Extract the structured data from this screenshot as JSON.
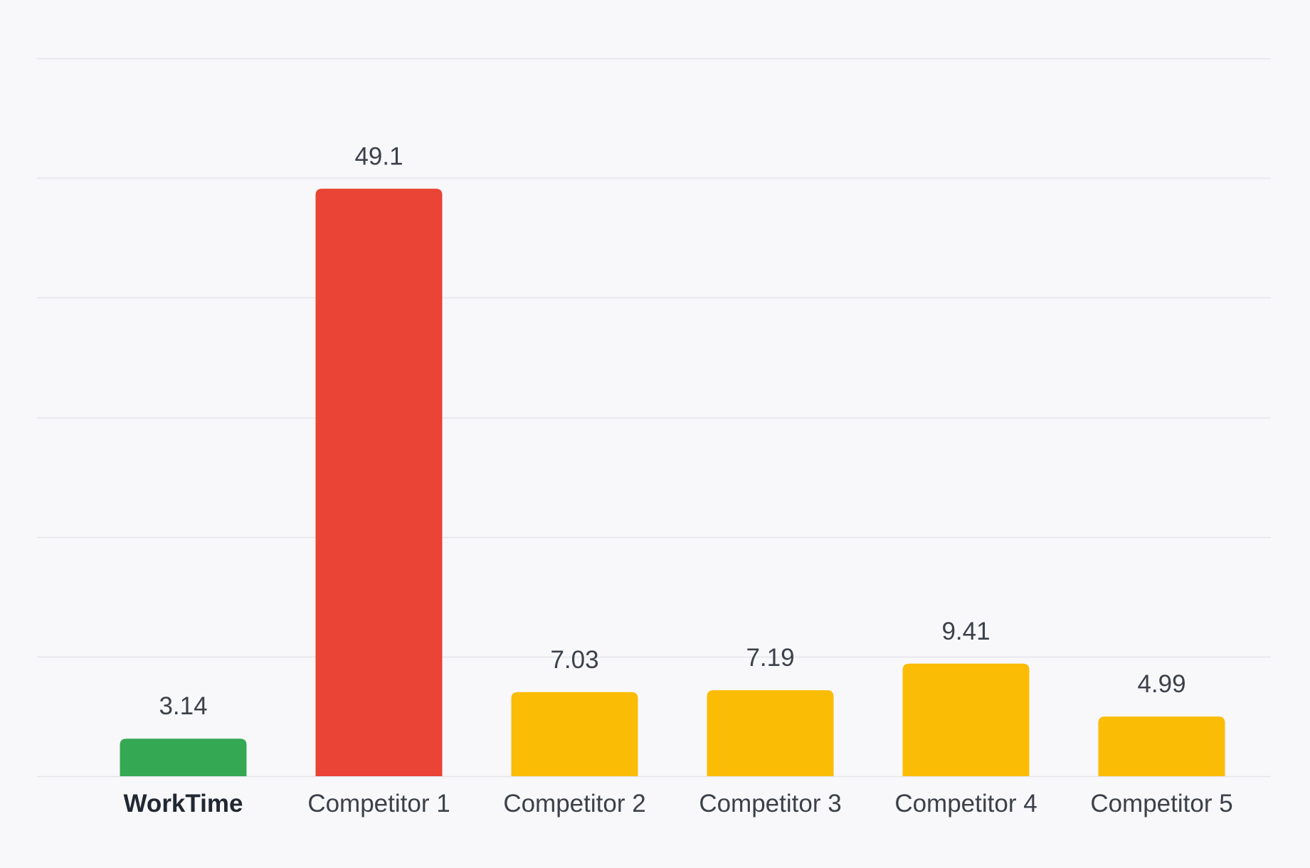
{
  "chart_data": {
    "type": "bar",
    "title": "",
    "xlabel": "",
    "ylabel": "",
    "categories": [
      "WorkTime",
      "Competitor 1",
      "Competitor 2",
      "Competitor 3",
      "Competitor 4",
      "Competitor 5"
    ],
    "values": [
      3.14,
      49.1,
      7.03,
      7.19,
      9.41,
      4.99
    ],
    "value_labels": [
      "3.14",
      "49.1",
      "7.03",
      "7.19",
      "9.41",
      "4.99"
    ],
    "bar_colors": [
      "#34a853",
      "#e94435",
      "#fbbc05",
      "#fbbc05",
      "#fbbc05",
      "#fbbc05"
    ],
    "highlighted_category": "WorkTime",
    "ylim": [
      0,
      60
    ],
    "grid": true,
    "y_tick_labels_shown": false,
    "legend": "none"
  },
  "colors": {
    "background": "#f8f8fb",
    "gridline": "#e4e4ea",
    "label_text": "#3c4049",
    "highlight_text": "#222832"
  }
}
